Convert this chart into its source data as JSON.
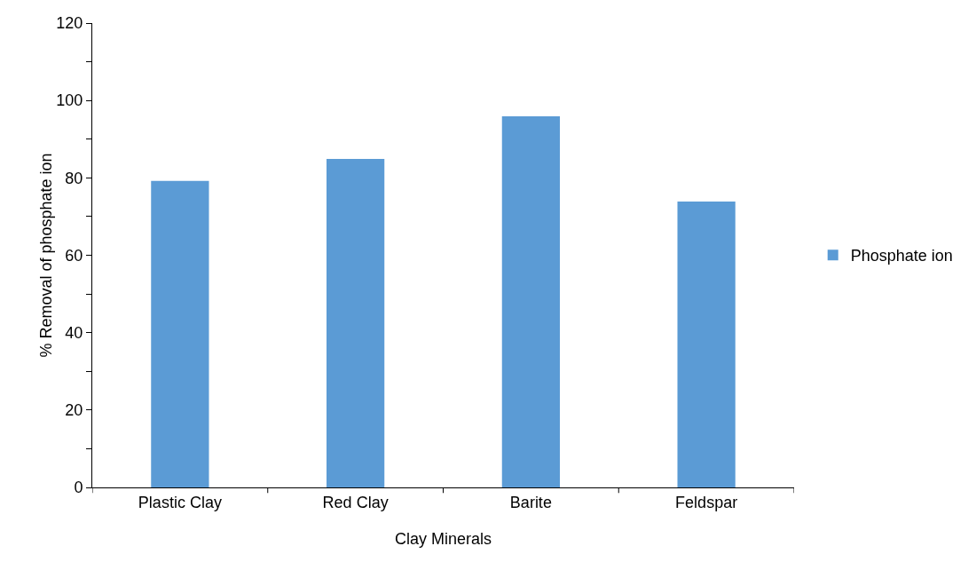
{
  "chart_data": {
    "type": "bar",
    "xlabel": "Clay Minerals",
    "ylabel": "% Removal of phosphate ion",
    "categories": [
      "Plastic Clay",
      "Red Clay",
      "Barite",
      "Feldspar"
    ],
    "series": [
      {
        "name": "Phosphate ion",
        "color": "#5b9bd5",
        "values": [
          79.2,
          84.9,
          95.9,
          73.9
        ]
      }
    ],
    "ylim": [
      0,
      120
    ],
    "yticks": [
      0,
      {
        "value": 10,
        "label": null
      },
      20,
      {
        "value": 30,
        "label": null
      },
      40,
      {
        "value": 50,
        "label": null
      },
      60,
      {
        "value": 70,
        "label": null
      },
      80,
      {
        "value": 90,
        "label": null
      },
      100,
      {
        "value": 110,
        "label": null
      },
      120
    ],
    "grid": false,
    "legend": "right"
  }
}
